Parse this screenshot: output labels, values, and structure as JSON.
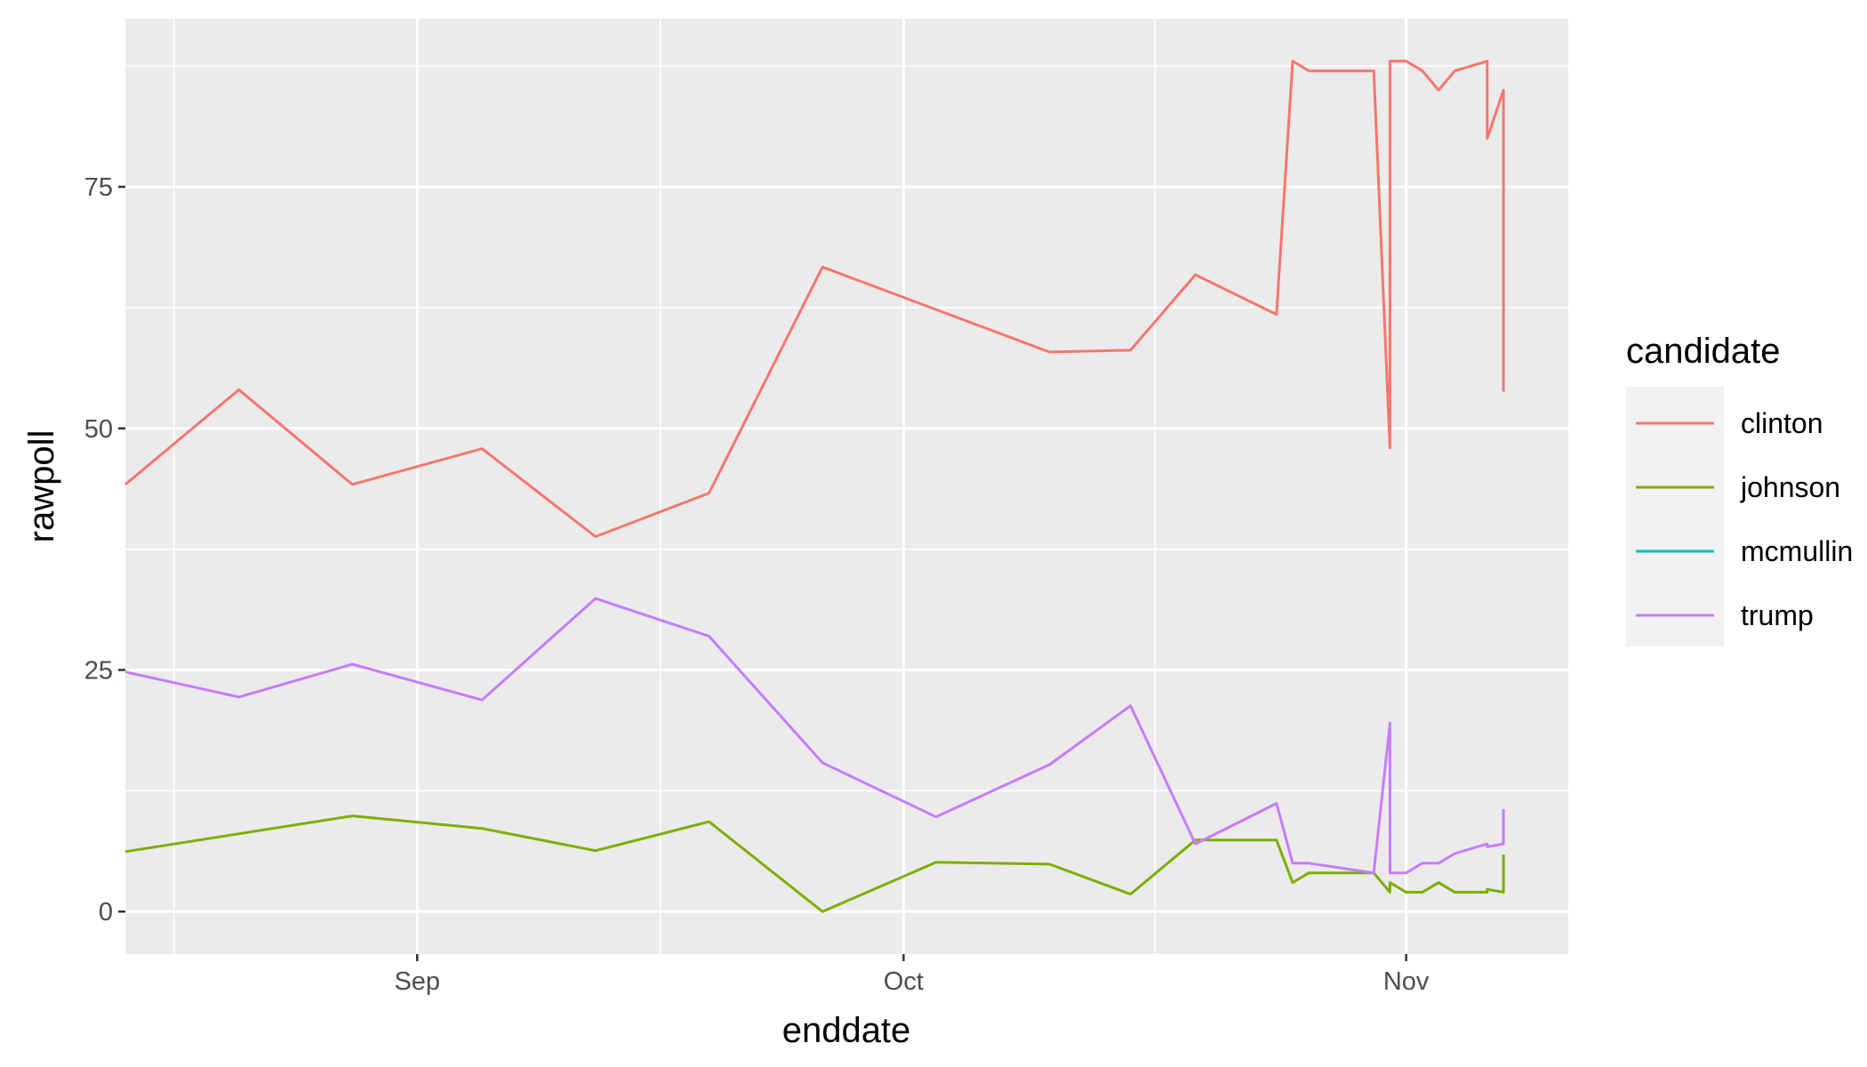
{
  "chart_data": {
    "type": "line",
    "xlabel": "enddate",
    "ylabel": "rawpoll",
    "x_type": "date",
    "xlim": [
      "2016-08-14",
      "2016-11-11"
    ],
    "ylim": [
      -4.4,
      92.4
    ],
    "x_ticks": [
      {
        "date": "2016-09-01",
        "label": "Sep"
      },
      {
        "date": "2016-10-01",
        "label": "Oct"
      },
      {
        "date": "2016-11-01",
        "label": "Nov"
      }
    ],
    "y_ticks": [
      0,
      25,
      50,
      75
    ],
    "grid": true,
    "legend": {
      "title": "candidate",
      "position": "right"
    },
    "series": [
      {
        "name": "clinton",
        "color": "#F8766D",
        "points": [
          [
            "2016-08-14",
            44.2
          ],
          [
            "2016-08-21",
            54.0
          ],
          [
            "2016-08-28",
            44.2
          ],
          [
            "2016-09-05",
            47.9
          ],
          [
            "2016-09-12",
            38.8
          ],
          [
            "2016-09-19",
            43.3
          ],
          [
            "2016-09-26",
            66.7
          ],
          [
            "2016-10-03",
            62.3
          ],
          [
            "2016-10-10",
            57.9
          ],
          [
            "2016-10-15",
            58.1
          ],
          [
            "2016-10-19",
            65.9
          ],
          [
            "2016-10-24",
            61.8
          ],
          [
            "2016-10-25",
            88.0
          ],
          [
            "2016-10-26",
            87.0
          ],
          [
            "2016-10-30",
            87.0
          ],
          [
            "2016-10-31",
            48.0
          ],
          [
            "2016-10-31",
            88.0
          ],
          [
            "2016-11-01",
            88.0
          ],
          [
            "2016-11-02",
            87.0
          ],
          [
            "2016-11-03",
            85.0
          ],
          [
            "2016-11-04",
            87.0
          ],
          [
            "2016-11-06",
            88.0
          ],
          [
            "2016-11-06",
            80.0
          ],
          [
            "2016-11-07",
            85.0
          ],
          [
            "2016-11-07",
            53.8
          ]
        ]
      },
      {
        "name": "johnson",
        "color": "#7CAE00",
        "points": [
          [
            "2016-08-14",
            6.2
          ],
          [
            "2016-08-28",
            9.9
          ],
          [
            "2016-09-05",
            8.6
          ],
          [
            "2016-09-12",
            6.3
          ],
          [
            "2016-09-19",
            9.3
          ],
          [
            "2016-09-26",
            0.0
          ],
          [
            "2016-10-03",
            5.1
          ],
          [
            "2016-10-10",
            4.9
          ],
          [
            "2016-10-15",
            1.8
          ],
          [
            "2016-10-19",
            7.4
          ],
          [
            "2016-10-24",
            7.4
          ],
          [
            "2016-10-25",
            3.0
          ],
          [
            "2016-10-26",
            4.0
          ],
          [
            "2016-10-30",
            4.0
          ],
          [
            "2016-10-31",
            2.0
          ],
          [
            "2016-10-31",
            3.0
          ],
          [
            "2016-11-01",
            2.0
          ],
          [
            "2016-11-02",
            2.0
          ],
          [
            "2016-11-03",
            3.0
          ],
          [
            "2016-11-04",
            2.0
          ],
          [
            "2016-11-06",
            2.0
          ],
          [
            "2016-11-06",
            2.3
          ],
          [
            "2016-11-07",
            2.0
          ],
          [
            "2016-11-07",
            5.9
          ]
        ]
      },
      {
        "name": "mcmullin",
        "color": "#00BFC4",
        "points": []
      },
      {
        "name": "trump",
        "color": "#C77CFF",
        "points": [
          [
            "2016-08-14",
            24.8
          ],
          [
            "2016-08-21",
            22.2
          ],
          [
            "2016-08-28",
            25.6
          ],
          [
            "2016-09-05",
            21.9
          ],
          [
            "2016-09-12",
            32.4
          ],
          [
            "2016-09-19",
            28.5
          ],
          [
            "2016-09-26",
            15.4
          ],
          [
            "2016-10-03",
            9.8
          ],
          [
            "2016-10-10",
            15.2
          ],
          [
            "2016-10-15",
            21.3
          ],
          [
            "2016-10-19",
            7.0
          ],
          [
            "2016-10-24",
            11.2
          ],
          [
            "2016-10-25",
            5.0
          ],
          [
            "2016-10-26",
            5.0
          ],
          [
            "2016-10-30",
            4.0
          ],
          [
            "2016-10-31",
            19.5
          ],
          [
            "2016-10-31",
            4.0
          ],
          [
            "2016-11-01",
            4.0
          ],
          [
            "2016-11-02",
            5.0
          ],
          [
            "2016-11-03",
            5.0
          ],
          [
            "2016-11-04",
            6.0
          ],
          [
            "2016-11-06",
            7.0
          ],
          [
            "2016-11-06",
            6.7
          ],
          [
            "2016-11-07",
            7.0
          ],
          [
            "2016-11-07",
            10.6
          ]
        ]
      }
    ]
  }
}
